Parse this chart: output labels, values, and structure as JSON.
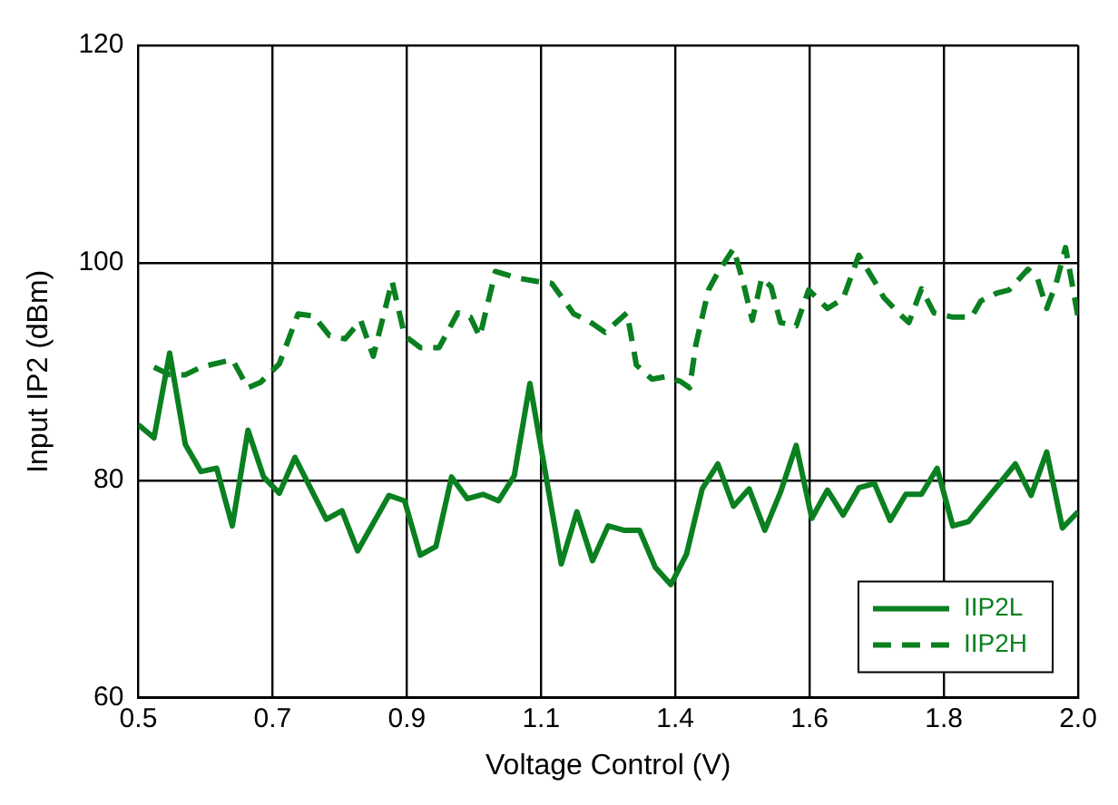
{
  "chart_data": {
    "type": "line",
    "xlabel": "Voltage Control (V)",
    "ylabel": "Input IP2 (dBm)",
    "xlim": [
      0.5,
      2.0
    ],
    "ylim": [
      60,
      120
    ],
    "xticks": [
      {
        "value": 0.5,
        "label": "0.5"
      },
      {
        "value": 0.7142857,
        "label": "0.7"
      },
      {
        "value": 0.9285714,
        "label": "0.9"
      },
      {
        "value": 1.1428571,
        "label": "1.1"
      },
      {
        "value": 1.3571429,
        "label": "1.4"
      },
      {
        "value": 1.5714286,
        "label": "1.6"
      },
      {
        "value": 1.7857143,
        "label": "1.8"
      },
      {
        "value": 2.0,
        "label": "2.0"
      }
    ],
    "yticks": [
      60,
      80,
      100,
      120
    ],
    "grid": true,
    "legend": "bottom right",
    "marker": "none",
    "series": [
      {
        "name": "IIP2L",
        "color": "#0a8020",
        "line_style": "solid",
        "x": [
          0.5,
          0.525,
          0.55,
          0.575,
          0.6,
          0.625,
          0.65,
          0.675,
          0.7,
          0.725,
          0.75,
          0.8,
          0.825,
          0.85,
          0.9,
          0.925,
          0.95,
          0.975,
          1.0,
          1.025,
          1.05,
          1.075,
          1.1,
          1.125,
          1.175,
          1.2,
          1.225,
          1.25,
          1.275,
          1.3,
          1.325,
          1.35,
          1.375,
          1.4,
          1.425,
          1.45,
          1.475,
          1.5,
          1.525,
          1.55,
          1.575,
          1.6,
          1.625,
          1.65,
          1.675,
          1.7,
          1.725,
          1.75,
          1.775,
          1.8,
          1.825,
          1.9,
          1.925,
          1.95,
          1.975,
          2.0
        ],
        "values": [
          85.1,
          83.9,
          91.7,
          83.3,
          80.8,
          81.1,
          75.8,
          84.6,
          80.3,
          78.8,
          82.1,
          76.4,
          77.2,
          73.5,
          78.6,
          78.1,
          73.1,
          73.9,
          80.3,
          78.3,
          78.7,
          78.1,
          80.4,
          88.9,
          72.3,
          77.1,
          72.6,
          75.8,
          75.4,
          75.4,
          72.0,
          70.4,
          73.2,
          79.2,
          81.5,
          77.6,
          79.2,
          75.4,
          78.9,
          83.2,
          76.5,
          79.1,
          76.8,
          79.3,
          79.7,
          76.3,
          78.7,
          78.7,
          81.1,
          75.8,
          76.2,
          81.5,
          78.6,
          82.6,
          75.6,
          77.1
        ]
      },
      {
        "name": "IIP2H",
        "color": "#0a8020",
        "line_style": "dashed",
        "x": [
          0.525,
          0.55,
          0.575,
          0.6,
          0.65,
          0.675,
          0.695,
          0.725,
          0.755,
          0.78,
          0.805,
          0.83,
          0.855,
          0.875,
          0.905,
          0.925,
          0.95,
          0.98,
          1.01,
          1.03,
          1.045,
          1.07,
          1.105,
          1.135,
          1.16,
          1.195,
          1.22,
          1.245,
          1.28,
          1.295,
          1.32,
          1.34,
          1.365,
          1.38,
          1.39,
          1.41,
          1.425,
          1.45,
          1.465,
          1.48,
          1.495,
          1.51,
          1.525,
          1.55,
          1.57,
          1.6,
          1.625,
          1.65,
          1.675,
          1.69,
          1.715,
          1.73,
          1.75,
          1.77,
          1.8,
          1.83,
          1.845,
          1.87,
          1.89,
          1.92,
          1.935,
          1.95,
          1.965,
          1.98,
          2.0
        ],
        "values": [
          90.4,
          89.7,
          89.7,
          90.4,
          91.1,
          88.5,
          89.0,
          90.7,
          95.3,
          95.1,
          93.3,
          93.0,
          94.7,
          91.4,
          98.3,
          93.3,
          92.2,
          92.2,
          95.4,
          95.0,
          93.2,
          99.2,
          98.6,
          98.3,
          98.1,
          95.3,
          94.6,
          93.6,
          95.4,
          90.6,
          89.3,
          89.5,
          89.1,
          88.5,
          92.5,
          97.5,
          99.1,
          101.3,
          98.3,
          94.7,
          98.6,
          97.8,
          94.5,
          94.2,
          97.5,
          95.8,
          96.7,
          100.7,
          98.3,
          96.8,
          95.3,
          94.5,
          97.6,
          95.4,
          95.0,
          95.0,
          96.5,
          97.2,
          97.5,
          99.4,
          98.6,
          95.8,
          98.1,
          101.4,
          95.0
        ]
      }
    ]
  }
}
